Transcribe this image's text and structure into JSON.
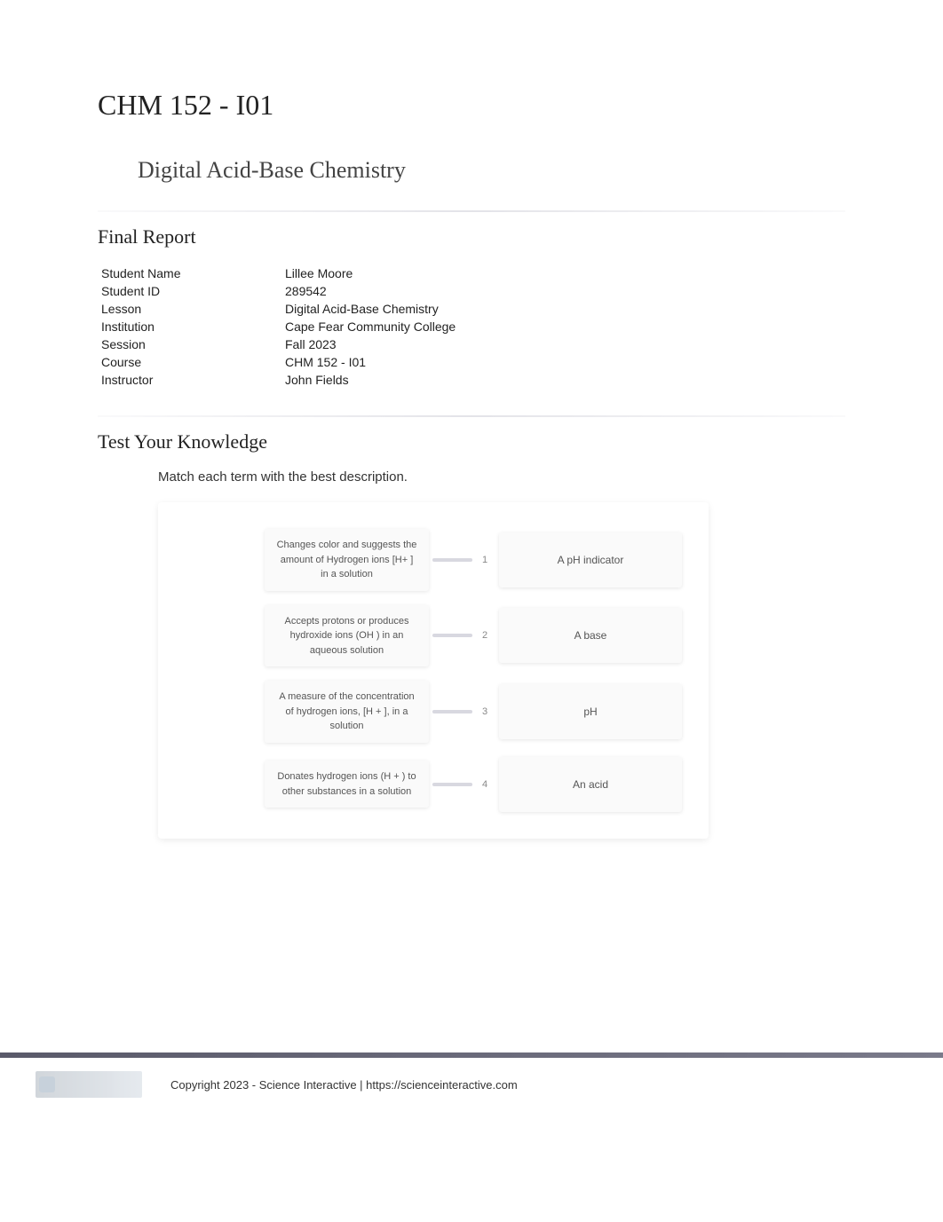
{
  "header": {
    "course_title": "CHM 152 - I01",
    "lesson_title": "Digital Acid-Base Chemistry"
  },
  "report": {
    "section_title": "Final Report",
    "rows": [
      {
        "label": "Student Name",
        "value": "Lillee Moore"
      },
      {
        "label": "Student ID",
        "value": "289542"
      },
      {
        "label": "Lesson",
        "value": "Digital Acid-Base Chemistry"
      },
      {
        "label": "Institution",
        "value": "Cape Fear Community College"
      },
      {
        "label": "Session",
        "value": "Fall 2023"
      },
      {
        "label": "Course",
        "value": "CHM 152 - I01"
      },
      {
        "label": "Instructor",
        "value": "John Fields"
      }
    ]
  },
  "knowledge": {
    "section_title": "Test Your Knowledge",
    "question": "Match each term with the best description.",
    "matches": [
      {
        "description": "Changes color and suggests the amount of Hydrogen ions [H+ ] in a solution",
        "number": "1",
        "term": "A pH indicator"
      },
      {
        "description": "Accepts protons or produces hydroxide ions (OH ) in an aqueous solution",
        "number": "2",
        "term": "A base"
      },
      {
        "description": "A measure of the concentration of hydrogen ions, [H  + ], in a solution",
        "number": "3",
        "term": "pH"
      },
      {
        "description": "Donates hydrogen ions (H       + ) to other substances in a solution",
        "number": "4",
        "term": "An acid"
      }
    ]
  },
  "footer": {
    "copyright": "Copyright 2023 - Science Interactive | https://scienceinteractive.com"
  },
  "colors": {
    "page_bg": "#ffffff",
    "text_primary": "#222222",
    "text_secondary": "#444444",
    "text_muted": "#555555",
    "card_bg": "#fafafa",
    "connector": "#d8d8e0",
    "footer_bar": "#5a5a6a"
  }
}
